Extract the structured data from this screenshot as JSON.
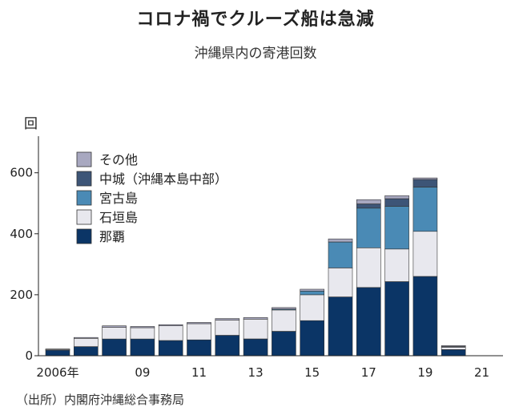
{
  "title": "コロナ禍でクルーズ船は急減",
  "subtitle": "沖縄県内の寄港回数",
  "source": "（出所）内閣府沖縄総合事務局",
  "chart_data": {
    "type": "bar",
    "stacked": true,
    "unit_label": "回",
    "categories": [
      "2006",
      "2007",
      "2008",
      "2009",
      "2010",
      "2011",
      "2012",
      "2013",
      "2014",
      "2015",
      "2016",
      "2017",
      "2018",
      "2019",
      "2020",
      "2021"
    ],
    "x_tick_labels": [
      {
        "index": 0,
        "label": "2006年"
      },
      {
        "index": 3,
        "label": "09"
      },
      {
        "index": 5,
        "label": "11"
      },
      {
        "index": 7,
        "label": "13"
      },
      {
        "index": 9,
        "label": "15"
      },
      {
        "index": 11,
        "label": "17"
      },
      {
        "index": 13,
        "label": "19"
      },
      {
        "index": 15,
        "label": "21"
      }
    ],
    "y_ticks": [
      0,
      200,
      400,
      600
    ],
    "ylim": [
      0,
      720
    ],
    "series": [
      {
        "name": "那覇",
        "color": "#0b3566",
        "values": [
          18,
          30,
          55,
          55,
          50,
          52,
          67,
          55,
          80,
          115,
          193,
          224,
          243,
          260,
          20,
          0
        ]
      },
      {
        "name": "石垣島",
        "color": "#e8e8ee",
        "values": [
          3,
          27,
          38,
          37,
          48,
          53,
          50,
          65,
          70,
          85,
          95,
          130,
          107,
          148,
          8,
          0
        ]
      },
      {
        "name": "宮古島",
        "color": "#4a8ab5",
        "values": [
          0,
          0,
          0,
          0,
          0,
          0,
          0,
          0,
          3,
          12,
          85,
          130,
          140,
          145,
          0,
          0
        ]
      },
      {
        "name": "中城（沖縄本島中部）",
        "color": "#3d5577",
        "values": [
          0,
          0,
          0,
          0,
          0,
          0,
          0,
          0,
          0,
          0,
          0,
          14,
          25,
          25,
          2,
          0
        ]
      },
      {
        "name": "その他",
        "color": "#a8a8c0",
        "values": [
          1,
          3,
          5,
          4,
          4,
          4,
          5,
          5,
          5,
          6,
          10,
          14,
          10,
          5,
          3,
          0
        ]
      }
    ],
    "legend_order": [
      "その他",
      "中城（沖縄本島中部）",
      "宮古島",
      "石垣島",
      "那覇"
    ],
    "legend_position": "top-left",
    "grid": false
  }
}
